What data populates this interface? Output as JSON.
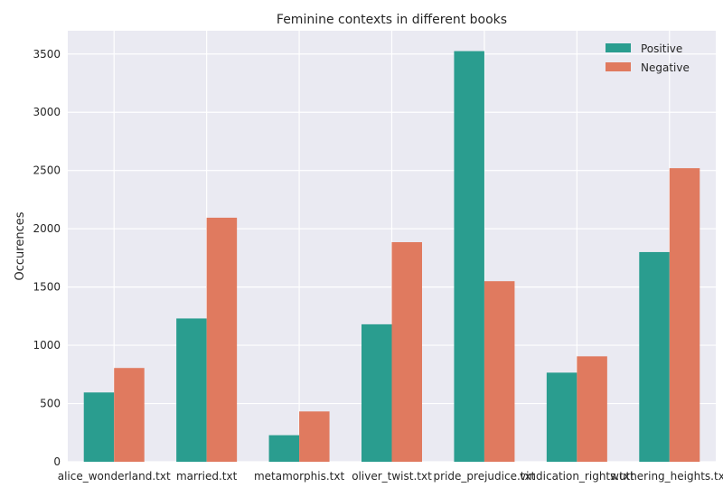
{
  "chart_data": {
    "type": "bar",
    "title": "Feminine contexts in different books",
    "xlabel": "",
    "ylabel": "Occurences",
    "categories": [
      "alice_wonderland.txt",
      "married.txt",
      "metamorphis.txt",
      "oliver_twist.txt",
      "pride_prejudice.txt",
      "vindication_rights.txt",
      "wuthering_heights.txt"
    ],
    "series": [
      {
        "name": "Positive",
        "color": "#2a9d8f",
        "values": [
          595,
          1230,
          228,
          1180,
          3525,
          765,
          1800
        ]
      },
      {
        "name": "Negative",
        "color": "#e07a5f",
        "values": [
          805,
          2095,
          432,
          1885,
          1550,
          905,
          2520
        ]
      }
    ],
    "ylim": [
      0,
      3700
    ],
    "yticks": [
      0,
      500,
      1000,
      1500,
      2000,
      2500,
      3000,
      3500
    ],
    "grid": true,
    "legend": "top-right",
    "background": "#eaeaf2"
  }
}
